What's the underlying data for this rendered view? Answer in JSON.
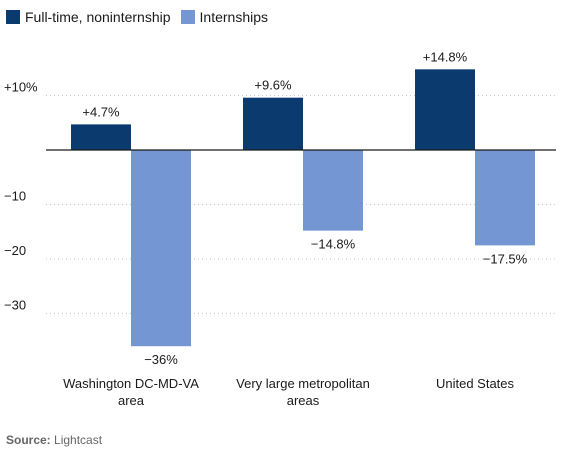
{
  "chart_data": {
    "type": "bar",
    "categories": [
      [
        "Washington DC-MD-VA",
        "area"
      ],
      [
        "Very large metropolitan",
        "areas"
      ],
      [
        "United States"
      ]
    ],
    "series": [
      {
        "name": "Full-time, noninternship",
        "values": [
          4.7,
          9.6,
          14.8
        ],
        "labels": [
          "+4.7%",
          "+9.6%",
          "+14.8%"
        ],
        "color": "#0b3a6f"
      },
      {
        "name": "Internships",
        "values": [
          -36,
          -14.8,
          -17.5
        ],
        "labels": [
          "−36%",
          "−14.8%",
          "−17.5%"
        ],
        "color": "#7497d4"
      }
    ],
    "yticks": [
      {
        "value": 10,
        "label": "+10%"
      },
      {
        "value": -10,
        "label": "−10"
      },
      {
        "value": -20,
        "label": "−20"
      },
      {
        "value": -30,
        "label": "−30"
      }
    ],
    "ylim": [
      -36,
      14.8
    ],
    "zero_line": true,
    "gridlines": "dotted"
  },
  "source": {
    "label": "Source:",
    "text": "Lightcast"
  }
}
